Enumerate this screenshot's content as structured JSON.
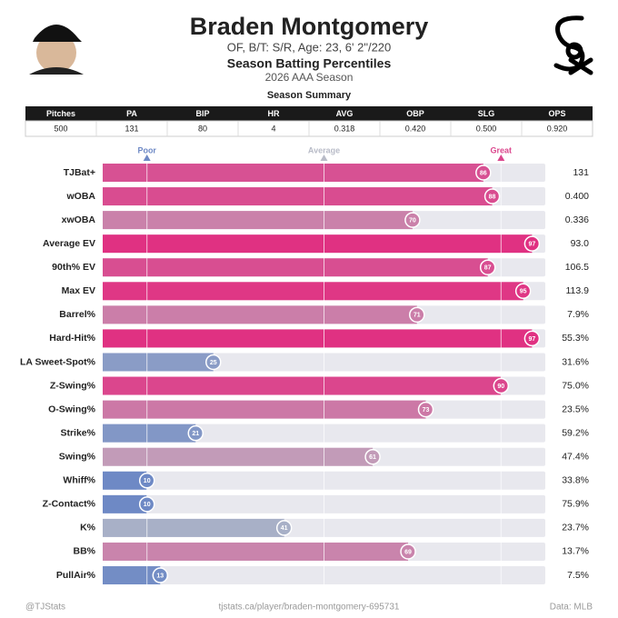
{
  "header": {
    "name": "Braden Montgomery",
    "info": "OF, B/T: S/R, Age: 23, 6' 2\"/220",
    "subtitle": "Season Batting Percentiles",
    "season": "2026 AAA Season"
  },
  "table": {
    "title": "Season Summary",
    "columns": [
      "Pitches",
      "PA",
      "BIP",
      "HR",
      "AVG",
      "OBP",
      "SLG",
      "OPS"
    ],
    "rows": [
      [
        "500",
        "131",
        "80",
        "4",
        "0.318",
        "0.420",
        "0.500",
        "0.920"
      ]
    ]
  },
  "chart_data": {
    "type": "bar",
    "orientation": "horizontal",
    "categories": [
      "TJBat+",
      "wOBA",
      "xwOBA",
      "Average EV",
      "90th% EV",
      "Max EV",
      "Barrel%",
      "Hard-Hit%",
      "LA Sweet-Spot%",
      "Z-Swing%",
      "O-Swing%",
      "Strike%",
      "Swing%",
      "Whiff%",
      "Z-Contact%",
      "K%",
      "BB%",
      "PullAir%"
    ],
    "values": [
      86,
      88,
      70,
      97,
      87,
      95,
      71,
      97,
      25,
      90,
      73,
      21,
      61,
      10,
      10,
      41,
      69,
      13
    ],
    "stats": [
      "131",
      "0.400",
      "0.336",
      "93.0",
      "106.5",
      "113.9",
      "7.9%",
      "55.3%",
      "31.6%",
      "75.0%",
      "23.5%",
      "59.2%",
      "47.4%",
      "33.8%",
      "75.9%",
      "23.7%",
      "13.7%",
      "7.5%"
    ],
    "xlim": [
      0,
      100
    ],
    "xticks": [
      {
        "value": 10,
        "label": "Poor"
      },
      {
        "value": 50,
        "label": "Average"
      },
      {
        "value": 90,
        "label": "Great"
      }
    ],
    "color_scale": [
      "#5b7cc4",
      "#b9bcc8",
      "#e3287e"
    ],
    "track_color": "#e8e8ee",
    "grid": true
  },
  "footer": {
    "left": "@TJStats",
    "center": "tjstats.ca/player/braden-montgomery-695731",
    "right": "Data: MLB"
  }
}
